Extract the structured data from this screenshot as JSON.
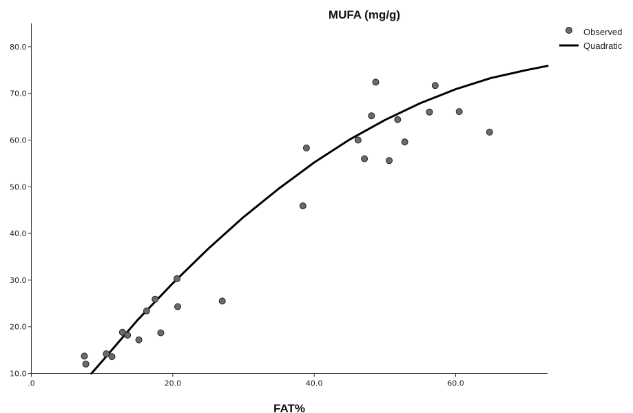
{
  "chart_data": {
    "type": "scatter",
    "title": "MUFA (mg/g)",
    "xlabel": "FAT%",
    "ylabel": "",
    "xlim": [
      0,
      73
    ],
    "ylim": [
      10,
      85
    ],
    "x_ticks": [
      0,
      20,
      40,
      60
    ],
    "x_tick_labels": [
      ".0",
      "20.0",
      "40.0",
      "60.0"
    ],
    "y_ticks": [
      10,
      20,
      30,
      40,
      50,
      60,
      70,
      80
    ],
    "y_tick_labels": [
      "10.0",
      "20.0",
      "30.0",
      "40.0",
      "50.0",
      "60.0",
      "70.0",
      "80.0"
    ],
    "grid": false,
    "legend_position": "top-right",
    "series": [
      {
        "name": "Observed",
        "kind": "scatter",
        "color": "#6b6b6b",
        "points": [
          {
            "x": 7.5,
            "y": 13.7
          },
          {
            "x": 7.7,
            "y": 12.0
          },
          {
            "x": 10.6,
            "y": 14.2
          },
          {
            "x": 11.4,
            "y": 13.6
          },
          {
            "x": 12.9,
            "y": 18.8
          },
          {
            "x": 13.6,
            "y": 18.2
          },
          {
            "x": 15.2,
            "y": 17.2
          },
          {
            "x": 16.3,
            "y": 23.4
          },
          {
            "x": 17.5,
            "y": 25.9
          },
          {
            "x": 18.3,
            "y": 18.7
          },
          {
            "x": 20.6,
            "y": 30.3
          },
          {
            "x": 20.7,
            "y": 24.3
          },
          {
            "x": 27.0,
            "y": 25.5
          },
          {
            "x": 38.4,
            "y": 45.9
          },
          {
            "x": 38.9,
            "y": 58.3
          },
          {
            "x": 46.2,
            "y": 60.0
          },
          {
            "x": 47.1,
            "y": 56.0
          },
          {
            "x": 48.1,
            "y": 65.2
          },
          {
            "x": 48.7,
            "y": 72.4
          },
          {
            "x": 50.6,
            "y": 55.6
          },
          {
            "x": 51.8,
            "y": 64.4
          },
          {
            "x": 52.8,
            "y": 59.6
          },
          {
            "x": 56.3,
            "y": 66.0
          },
          {
            "x": 57.1,
            "y": 71.7
          },
          {
            "x": 60.5,
            "y": 66.1
          },
          {
            "x": 64.8,
            "y": 61.7
          }
        ]
      },
      {
        "name": "Quadratic",
        "kind": "line",
        "color": "#000000",
        "points": [
          {
            "x": 8.5,
            "y": 10.0
          },
          {
            "x": 10,
            "y": 12.6
          },
          {
            "x": 15,
            "y": 21.4
          },
          {
            "x": 20,
            "y": 29.3
          },
          {
            "x": 25,
            "y": 36.7
          },
          {
            "x": 30,
            "y": 43.5
          },
          {
            "x": 35,
            "y": 49.6
          },
          {
            "x": 40,
            "y": 55.2
          },
          {
            "x": 45,
            "y": 60.1
          },
          {
            "x": 50,
            "y": 64.3
          },
          {
            "x": 55,
            "y": 67.9
          },
          {
            "x": 60,
            "y": 70.9
          },
          {
            "x": 65,
            "y": 73.3
          },
          {
            "x": 70,
            "y": 75.0
          },
          {
            "x": 73,
            "y": 75.9
          }
        ]
      }
    ]
  }
}
